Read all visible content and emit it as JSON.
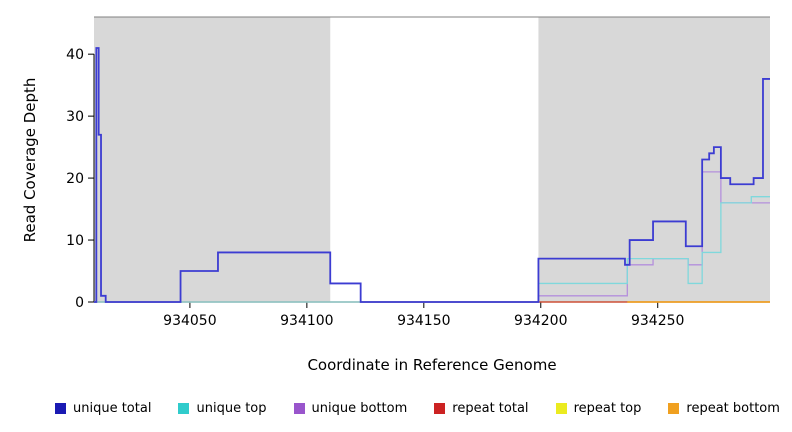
{
  "figure": {
    "background": "#ffffff",
    "shade_color": "#d8d8d8",
    "frame_color": "#808080",
    "axis_color": "#000000"
  },
  "chart_data": {
    "type": "line",
    "title": "",
    "xlabel": "Coordinate in Reference Genome",
    "ylabel": "Read Coverage Depth",
    "xlim": [
      934009,
      934298
    ],
    "ylim": [
      0,
      46
    ],
    "xticks": [
      934050,
      934100,
      934150,
      934200,
      934250
    ],
    "yticks": [
      0,
      10,
      20,
      30,
      40
    ],
    "grid": false,
    "legend_position": "bottom",
    "shaded_regions": [
      {
        "x0": 934009,
        "x1": 934110,
        "color": "#d8d8d8"
      },
      {
        "x0": 934199,
        "x1": 934298,
        "color": "#d8d8d8"
      }
    ],
    "series": [
      {
        "name": "repeat top",
        "color": "#ebeb20",
        "width": 1.3,
        "steps": [
          [
            934009,
            0
          ]
        ]
      },
      {
        "name": "repeat total",
        "color": "#c83232",
        "width": 1.3,
        "steps": [
          [
            934009,
            0
          ]
        ]
      },
      {
        "name": "repeat bottom",
        "color": "#f0a020",
        "width": 1.5,
        "steps": [
          [
            934237,
            0
          ]
        ]
      },
      {
        "name": "unique bottom",
        "color": "#b48fdc",
        "width": 1.3,
        "steps": [
          [
            934009,
            0
          ],
          [
            934199,
            1
          ],
          [
            934237,
            6
          ],
          [
            934248,
            7
          ],
          [
            934263,
            6
          ],
          [
            934269,
            21
          ],
          [
            934277,
            16
          ]
        ]
      },
      {
        "name": "unique top",
        "color": "#7fd8dc",
        "width": 1.3,
        "steps": [
          [
            934009,
            0
          ],
          [
            934199,
            3
          ],
          [
            934237,
            7
          ],
          [
            934263,
            3
          ],
          [
            934269,
            8
          ],
          [
            934277,
            16
          ],
          [
            934290,
            17
          ]
        ]
      },
      {
        "name": "unique total",
        "color": "#3c3cd2",
        "width": 1.8,
        "steps": [
          [
            934009,
            0
          ],
          [
            934010,
            41
          ],
          [
            934011,
            27
          ],
          [
            934012,
            1
          ],
          [
            934014,
            0
          ],
          [
            934046,
            5
          ],
          [
            934062,
            8
          ],
          [
            934110,
            3
          ],
          [
            934123,
            0
          ],
          [
            934199,
            7
          ],
          [
            934236,
            6
          ],
          [
            934238,
            10
          ],
          [
            934248,
            13
          ],
          [
            934262,
            9
          ],
          [
            934269,
            23
          ],
          [
            934272,
            24
          ],
          [
            934274,
            25
          ],
          [
            934277,
            20
          ],
          [
            934281,
            19
          ],
          [
            934291,
            20
          ],
          [
            934295,
            36
          ]
        ]
      }
    ],
    "legend": [
      {
        "label": "unique total",
        "color": "#1a1ab3"
      },
      {
        "label": "unique top",
        "color": "#30cccc"
      },
      {
        "label": "unique bottom",
        "color": "#9955cc"
      },
      {
        "label": "repeat total",
        "color": "#cc2222"
      },
      {
        "label": "repeat top",
        "color": "#ebeb20"
      },
      {
        "label": "repeat bottom",
        "color": "#f0a020"
      }
    ]
  }
}
